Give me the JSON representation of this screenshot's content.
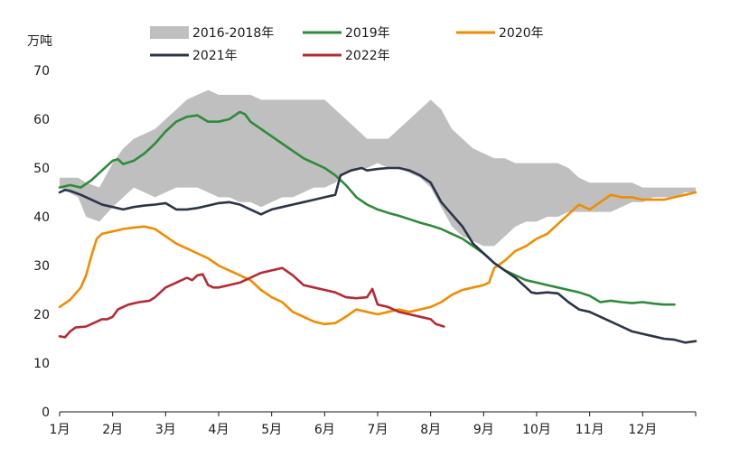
{
  "chart_data": {
    "type": "line",
    "unit": "万吨",
    "y_ticks": [
      "0",
      "10",
      "20",
      "30",
      "40",
      "50",
      "60",
      "70"
    ],
    "ylim": [
      0,
      70
    ],
    "x_ticks": [
      "1月",
      "2月",
      "3月",
      "4月",
      "5月",
      "6月",
      "7月",
      "8月",
      "9月",
      "10月",
      "11月",
      "12月"
    ],
    "xlim": [
      1,
      13
    ],
    "band": {
      "name": "2016-2018年",
      "color": "#bfbfbf",
      "x": [
        1.0,
        1.35,
        1.5,
        1.75,
        2.0,
        2.2,
        2.4,
        2.6,
        2.8,
        3.0,
        3.2,
        3.4,
        3.6,
        3.8,
        4.0,
        4.2,
        4.4,
        4.6,
        4.8,
        5.0,
        5.2,
        5.4,
        5.6,
        5.8,
        6.0,
        6.2,
        6.4,
        6.6,
        6.8,
        7.0,
        7.2,
        7.4,
        7.6,
        7.8,
        8.0,
        8.2,
        8.4,
        8.6,
        8.8,
        9.0,
        9.2,
        9.4,
        9.6,
        9.8,
        10.0,
        10.2,
        10.4,
        10.6,
        10.8,
        11.0,
        11.2,
        11.4,
        11.6,
        11.8,
        12.0,
        12.2,
        12.4,
        12.6,
        12.8,
        13.0
      ],
      "upper": [
        48,
        48,
        47,
        46,
        51,
        54,
        56,
        57,
        58,
        60,
        62,
        64,
        65,
        66,
        65,
        65,
        65,
        65,
        64,
        64,
        64,
        64,
        64,
        64,
        64,
        62,
        60,
        58,
        56,
        56,
        56,
        58,
        60,
        62,
        64,
        62,
        58,
        56,
        54,
        53,
        52,
        52,
        51,
        51,
        51,
        51,
        51,
        50,
        48,
        47,
        47,
        47,
        47,
        47,
        46,
        46,
        46,
        46,
        46,
        46
      ],
      "lower": [
        46,
        44,
        40,
        39,
        42,
        44,
        46,
        45,
        44,
        45,
        46,
        46,
        46,
        45,
        44,
        44,
        43,
        43,
        42,
        43,
        44,
        44,
        45,
        46,
        46,
        47,
        49,
        50,
        50,
        51,
        50,
        50,
        49,
        48,
        46,
        42,
        38,
        36,
        35,
        34,
        34,
        36,
        38,
        39,
        39,
        40,
        40,
        41,
        41,
        41,
        41,
        41,
        42,
        43,
        43,
        44,
        44,
        44,
        45,
        45
      ]
    },
    "series": [
      {
        "name": "2019年",
        "color": "#2e8b3a",
        "x": [
          1.0,
          1.2,
          1.4,
          1.6,
          1.8,
          2.0,
          2.1,
          2.2,
          2.4,
          2.6,
          2.8,
          3.0,
          3.2,
          3.4,
          3.6,
          3.8,
          4.0,
          4.2,
          4.4,
          4.5,
          4.6,
          4.8,
          5.0,
          5.2,
          5.4,
          5.6,
          5.8,
          6.0,
          6.2,
          6.4,
          6.6,
          6.8,
          7.0,
          7.2,
          7.4,
          7.6,
          7.8,
          8.0,
          8.2,
          8.4,
          8.6,
          8.8,
          9.0,
          9.2,
          9.4,
          9.6,
          9.8,
          10.0,
          10.2,
          10.4,
          10.6,
          10.8,
          11.0,
          11.2,
          11.4,
          11.6,
          11.8,
          12.0,
          12.2,
          12.4,
          12.6
        ],
        "values": [
          46,
          46.5,
          46,
          47.5,
          49.5,
          51.5,
          51.8,
          50.8,
          51.5,
          53,
          55,
          57.5,
          59.5,
          60.5,
          60.8,
          59.5,
          59.5,
          60,
          61.5,
          61,
          59.5,
          58,
          56.5,
          55,
          53.5,
          52,
          51,
          50,
          48.5,
          46.5,
          44,
          42.5,
          41.5,
          40.8,
          40.2,
          39.5,
          38.8,
          38.2,
          37.5,
          36.5,
          35.5,
          34,
          32.5,
          30.5,
          29,
          28,
          27,
          26.5,
          26,
          25.5,
          25,
          24.5,
          23.8,
          22.5,
          22.8,
          22.5,
          22.3,
          22.5,
          22.2,
          22,
          22
        ]
      },
      {
        "name": "2020年",
        "color": "#f08c00",
        "x": [
          1.0,
          1.2,
          1.4,
          1.5,
          1.6,
          1.7,
          1.8,
          2.0,
          2.2,
          2.4,
          2.6,
          2.8,
          3.0,
          3.2,
          3.4,
          3.6,
          3.8,
          4.0,
          4.2,
          4.4,
          4.6,
          4.8,
          5.0,
          5.2,
          5.4,
          5.6,
          5.8,
          6.0,
          6.2,
          6.4,
          6.6,
          6.8,
          7.0,
          7.2,
          7.4,
          7.6,
          7.8,
          8.0,
          8.2,
          8.4,
          8.6,
          8.8,
          9.0,
          9.1,
          9.2,
          9.4,
          9.6,
          9.8,
          10.0,
          10.2,
          10.4,
          10.6,
          10.8,
          11.0,
          11.2,
          11.4,
          11.6,
          11.8,
          12.0,
          12.2,
          12.4,
          12.6,
          12.8,
          13.0
        ],
        "values": [
          21.5,
          23,
          25.5,
          28,
          32,
          35.5,
          36.5,
          37,
          37.5,
          37.8,
          38,
          37.5,
          36,
          34.5,
          33.5,
          32.5,
          31.5,
          30,
          29,
          28,
          27,
          25,
          23.5,
          22.5,
          20.5,
          19.5,
          18.5,
          18,
          18.2,
          19.5,
          21,
          20.5,
          20,
          20.5,
          21,
          20.5,
          21,
          21.5,
          22.5,
          24,
          25,
          25.5,
          26,
          26.5,
          29.5,
          31,
          33,
          34,
          35.5,
          36.5,
          38.5,
          40.5,
          42.5,
          41.5,
          43,
          44.5,
          44,
          44,
          43.5,
          43.5,
          43.5,
          44,
          44.5,
          45
        ]
      },
      {
        "name": "2021年",
        "color": "#2b3547",
        "x": [
          1.0,
          1.1,
          1.2,
          1.4,
          1.6,
          1.8,
          2.0,
          2.2,
          2.4,
          2.6,
          2.8,
          3.0,
          3.2,
          3.4,
          3.6,
          3.8,
          4.0,
          4.2,
          4.4,
          4.6,
          4.8,
          4.9,
          5.0,
          5.2,
          5.4,
          5.6,
          5.8,
          6.0,
          6.2,
          6.3,
          6.5,
          6.7,
          6.8,
          7.0,
          7.2,
          7.4,
          7.6,
          7.8,
          8.0,
          8.2,
          8.4,
          8.6,
          8.8,
          9.0,
          9.2,
          9.4,
          9.6,
          9.8,
          9.9,
          10.0,
          10.2,
          10.4,
          10.6,
          10.8,
          11.0,
          11.2,
          11.4,
          11.6,
          11.8,
          12.0,
          12.2,
          12.4,
          12.6,
          12.8,
          13.0
        ],
        "values": [
          45,
          45.5,
          45.3,
          44.5,
          43.5,
          42.5,
          42,
          41.5,
          42,
          42.3,
          42.5,
          42.8,
          41.5,
          41.5,
          41.8,
          42.3,
          42.8,
          43,
          42.5,
          41.5,
          40.5,
          41,
          41.5,
          42,
          42.5,
          43,
          43.5,
          44,
          44.5,
          48.5,
          49.5,
          50,
          49.5,
          49.8,
          50,
          50,
          49.5,
          48.5,
          47,
          43,
          40.5,
          38,
          34.5,
          32.5,
          30.5,
          29,
          27.5,
          25.5,
          24.5,
          24.3,
          24.5,
          24.3,
          22.5,
          21,
          20.5,
          19.5,
          18.5,
          17.5,
          16.5,
          16,
          15.5,
          15,
          14.8,
          14.2,
          14.5
        ]
      },
      {
        "name": "2022年",
        "color": "#b52a35",
        "x": [
          1.0,
          1.1,
          1.2,
          1.3,
          1.5,
          1.6,
          1.8,
          1.9,
          2.0,
          2.1,
          2.3,
          2.5,
          2.7,
          2.8,
          3.0,
          3.2,
          3.4,
          3.5,
          3.6,
          3.7,
          3.8,
          3.9,
          4.0,
          4.2,
          4.4,
          4.6,
          4.8,
          5.0,
          5.2,
          5.4,
          5.6,
          5.8,
          6.0,
          6.2,
          6.4,
          6.6,
          6.8,
          6.9,
          7.0,
          7.2,
          7.4,
          7.6,
          7.8,
          8.0,
          8.1,
          8.25
        ],
        "values": [
          15.5,
          15.3,
          16.5,
          17.3,
          17.5,
          18,
          19,
          19,
          19.5,
          21,
          22,
          22.5,
          22.8,
          23.5,
          25.5,
          26.5,
          27.5,
          27,
          28,
          28.2,
          26,
          25.5,
          25.5,
          26,
          26.5,
          27.5,
          28.5,
          29,
          29.5,
          28,
          26,
          25.5,
          25,
          24.5,
          23.5,
          23.3,
          23.5,
          25.2,
          22,
          21.5,
          20.5,
          20,
          19.5,
          19,
          18,
          17.5
        ]
      }
    ],
    "legend": {
      "rows": [
        [
          "2016-2018年",
          "2019年",
          "2020年"
        ],
        [
          "2021年",
          "2022年"
        ]
      ],
      "placement": "top"
    }
  }
}
